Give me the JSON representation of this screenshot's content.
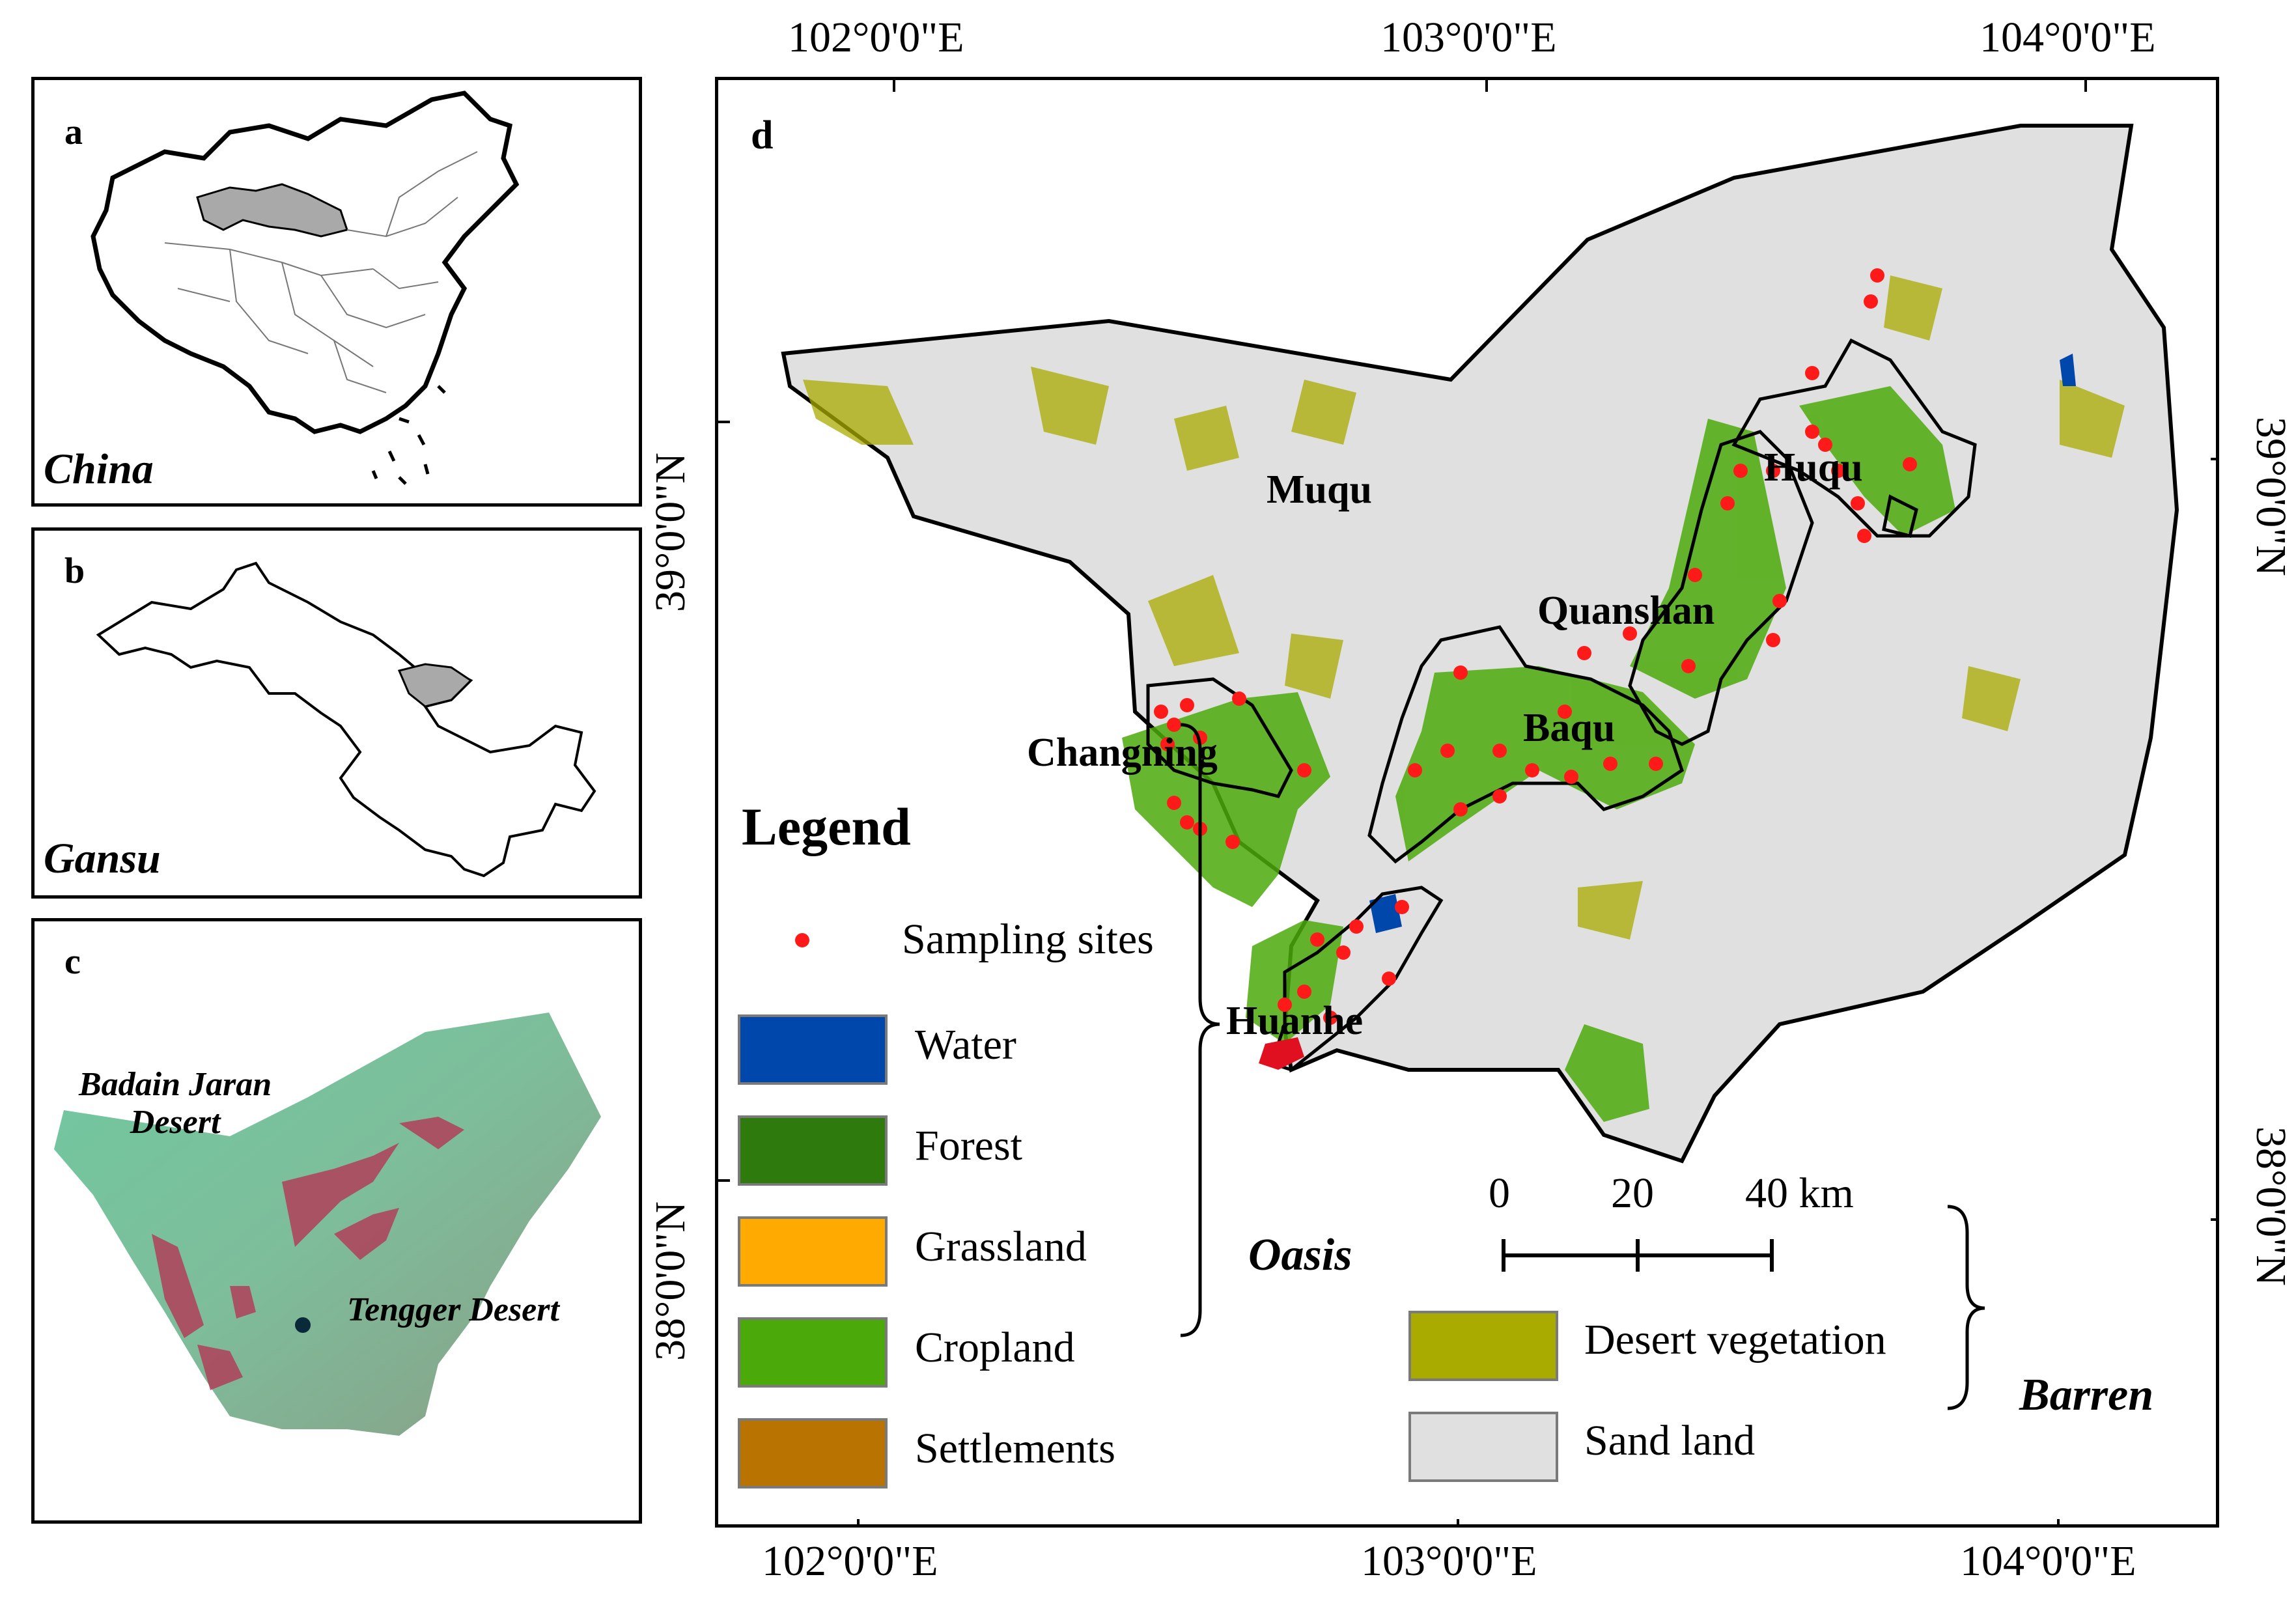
{
  "panels": {
    "a": {
      "label": "a",
      "name": "China"
    },
    "b": {
      "label": "b",
      "name": "Gansu"
    },
    "c": {
      "label": "c",
      "deserts": [
        "Badain Jaran\nDesert",
        "Tengger Desert"
      ]
    },
    "d": {
      "label": "d"
    }
  },
  "axes": {
    "top": [
      "102°0'0\"E",
      "103°0'0\"E",
      "104°0'0\"E"
    ],
    "bottom": [
      "102°0'0\"E",
      "103°0'0\"E",
      "104°0'0\"E"
    ],
    "left": [
      "39°0'0\"N",
      "38°0'0\"N"
    ],
    "right": [
      "39°0'0\"N",
      "38°0'0\"N"
    ]
  },
  "regions": [
    "Muqu",
    "Huqu",
    "Quanshan",
    "Baqu",
    "Changning",
    "Huanhe"
  ],
  "legend": {
    "title": "Legend",
    "sampling": "Sampling sites",
    "oasis_items": [
      {
        "label": "Water",
        "color": "#0047ab"
      },
      {
        "label": "Forest",
        "color": "#2e7a0c"
      },
      {
        "label": "Grassland",
        "color": "#ffaa00"
      },
      {
        "label": "Cropland",
        "color": "#4ca90a"
      },
      {
        "label": "Settlements",
        "color": "#b87300"
      }
    ],
    "oasis_group": "Oasis",
    "barren_items": [
      {
        "label": "Desert vegetation",
        "color": "#aaab00"
      },
      {
        "label": "Sand land",
        "color": "#e0e0e0"
      }
    ],
    "barren_group": "Barren"
  },
  "scale": {
    "ticks": [
      "0",
      "20",
      "40 km"
    ]
  },
  "colors": {
    "sample": "#ff1a1a",
    "outline": "#000000",
    "highlight": "#a9a9a9"
  }
}
